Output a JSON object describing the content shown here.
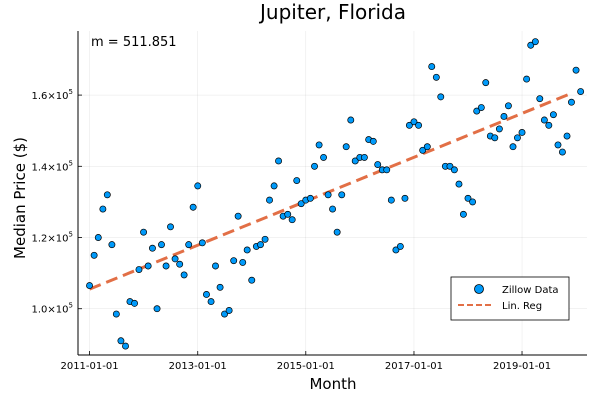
{
  "chart_data": {
    "type": "scatter",
    "title": "Jupiter, Florida",
    "xlabel": "Month",
    "ylabel": "Median Price ($)",
    "annotation": "m = 511.851",
    "x_start": "2011-01-01",
    "x_interval": "month",
    "x_ticks": [
      "2011-01-01",
      "2013-01-01",
      "2015-01-01",
      "2017-01-01",
      "2019-01-01"
    ],
    "xlim": [
      "2010-10-15",
      "2020-03-15"
    ],
    "y_ticks": [
      100000,
      120000,
      140000,
      160000
    ],
    "y_tick_labels": [
      {
        "mantissa": "1.0",
        "base": "×10",
        "exp": "5"
      },
      {
        "mantissa": "1.2",
        "base": "×10",
        "exp": "5"
      },
      {
        "mantissa": "1.4",
        "base": "×10",
        "exp": "5"
      },
      {
        "mantissa": "1.6",
        "base": "×10",
        "exp": "5"
      }
    ],
    "ylim": [
      87000,
      178000
    ],
    "grid": true,
    "legend_position": "bottom-right",
    "series": [
      {
        "name": "Zillow Data",
        "kind": "scatter",
        "color": "#009AFA",
        "values": [
          106500,
          115000,
          120000,
          128000,
          132000,
          118000,
          98500,
          91000,
          89500,
          102000,
          101500,
          111000,
          121500,
          112000,
          117000,
          100000,
          118000,
          112000,
          123000,
          114000,
          112500,
          109500,
          118000,
          128500,
          134500,
          118500,
          104000,
          102000,
          112000,
          106000,
          98500,
          99500,
          113500,
          126000,
          113000,
          116500,
          108000,
          117500,
          118000,
          119500,
          130500,
          134500,
          141500,
          126000,
          126500,
          125000,
          136000,
          129500,
          130500,
          131000,
          140000,
          146000,
          142500,
          132000,
          128000,
          121500,
          132000,
          145500,
          153000,
          141500,
          142500,
          142500,
          147500,
          147000,
          140500,
          139000,
          139000,
          130500,
          116500,
          117500,
          131000,
          151500,
          152500,
          151500,
          144500,
          145500,
          168000,
          165000,
          159500,
          140000,
          140000,
          139000,
          135000,
          126500,
          131000,
          130000,
          155500,
          156500,
          163500,
          148500,
          148000,
          150500,
          154000,
          157000,
          145500,
          148000,
          149500,
          164500,
          174000,
          175000,
          159000,
          153000,
          151500,
          154500,
          146000,
          144000,
          148500,
          158000,
          167000,
          161000
        ]
      },
      {
        "name": "Lin. Reg",
        "kind": "line",
        "color": "#E26F46",
        "x": [
          "2011-01-01",
          "2019-12-01"
        ],
        "y": [
          105500,
          160500
        ]
      }
    ]
  }
}
